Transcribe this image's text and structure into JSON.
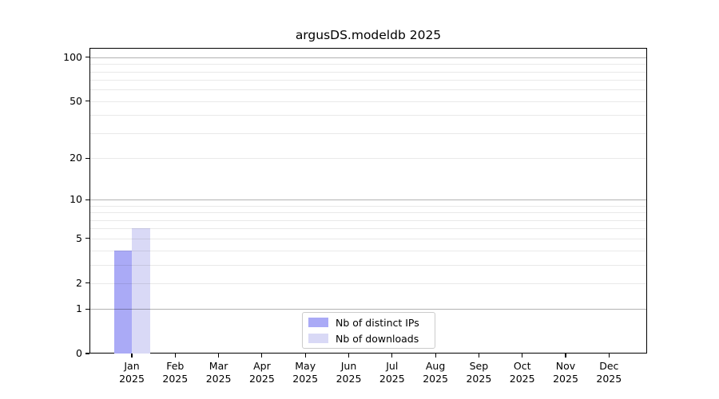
{
  "chart_data": {
    "type": "bar",
    "title": "argusDS.modeldb 2025",
    "xlabel": "",
    "ylabel": "",
    "categories": [
      "Jan",
      "Feb",
      "Mar",
      "Apr",
      "May",
      "Jun",
      "Jul",
      "Aug",
      "Sep",
      "Oct",
      "Nov",
      "Dec"
    ],
    "year_label": "2025",
    "series": [
      {
        "name": "Nb of distinct IPs",
        "color": "#aaaaf6",
        "values": [
          4,
          0,
          0,
          0,
          0,
          0,
          0,
          0,
          0,
          0,
          0,
          0
        ]
      },
      {
        "name": "Nb of downloads",
        "color": "#d9d9f6",
        "values": [
          6,
          0,
          0,
          0,
          0,
          0,
          0,
          0,
          0,
          0,
          0,
          0
        ]
      }
    ],
    "yscale": "log1p",
    "ylim": [
      0,
      116
    ],
    "yticks": [
      0,
      1,
      2,
      5,
      10,
      20,
      50,
      100
    ],
    "major_gridlines": [
      1,
      10,
      100
    ],
    "minor_gridlines": [
      2,
      3,
      4,
      5,
      6,
      7,
      8,
      9,
      20,
      30,
      40,
      50,
      60,
      70,
      80,
      90
    ],
    "grid": "both",
    "legend_position": "bottom-center"
  }
}
